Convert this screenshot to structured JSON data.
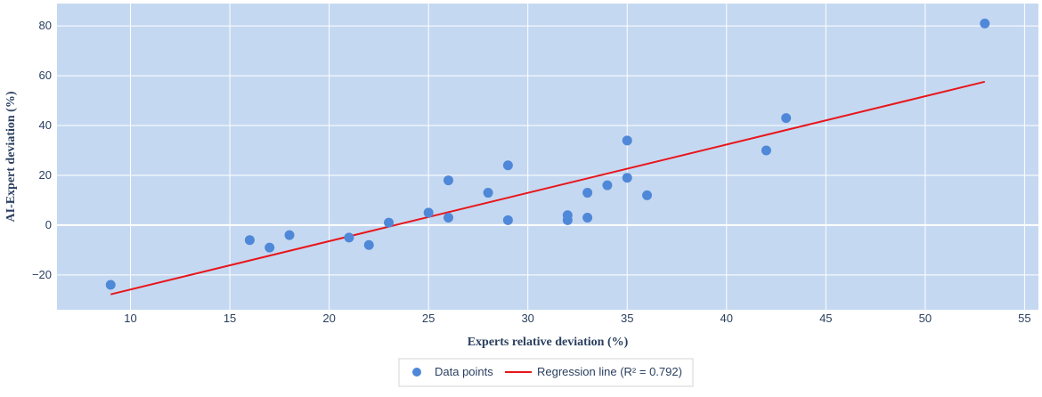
{
  "chart_data": {
    "type": "scatter",
    "xlabel": "Experts relative deviation (%)",
    "ylabel": "AI-Expert deviation (%)",
    "xlim": [
      6.3,
      55.7
    ],
    "ylim": [
      -34,
      89
    ],
    "xticks": [
      10,
      15,
      20,
      25,
      30,
      35,
      40,
      45,
      50,
      55
    ],
    "yticks": [
      -20,
      0,
      20,
      40,
      60,
      80
    ],
    "ytick_labels": [
      "−20",
      "0",
      "20",
      "40",
      "60",
      "80"
    ],
    "grid": true,
    "legend_position": "bottom-center",
    "series": [
      {
        "name": "Data points",
        "kind": "markers",
        "color": "#4f88d8",
        "points": [
          {
            "x": 9,
            "y": -24
          },
          {
            "x": 16,
            "y": -6
          },
          {
            "x": 17,
            "y": -9
          },
          {
            "x": 18,
            "y": -4
          },
          {
            "x": 21,
            "y": -5
          },
          {
            "x": 22,
            "y": -8
          },
          {
            "x": 23,
            "y": 1
          },
          {
            "x": 25,
            "y": 5
          },
          {
            "x": 26,
            "y": 18
          },
          {
            "x": 26,
            "y": 3
          },
          {
            "x": 28,
            "y": 13
          },
          {
            "x": 29,
            "y": 24
          },
          {
            "x": 29,
            "y": 2
          },
          {
            "x": 32,
            "y": 4
          },
          {
            "x": 32,
            "y": 2
          },
          {
            "x": 33,
            "y": 13
          },
          {
            "x": 33,
            "y": 3
          },
          {
            "x": 34,
            "y": 16
          },
          {
            "x": 35,
            "y": 34
          },
          {
            "x": 35,
            "y": 19
          },
          {
            "x": 36,
            "y": 12
          },
          {
            "x": 42,
            "y": 30
          },
          {
            "x": 43,
            "y": 43
          },
          {
            "x": 53,
            "y": 81
          }
        ]
      },
      {
        "name": "Regression line (R² = 0.792)",
        "kind": "line",
        "color": "#e8161b",
        "points": [
          {
            "x": 9,
            "y": -27.8
          },
          {
            "x": 53,
            "y": 57.6
          }
        ]
      }
    ],
    "colors": {
      "plot_background": "#c5d8f1",
      "grid": "#ffffff",
      "axis_text": "#2a3f5f"
    }
  }
}
